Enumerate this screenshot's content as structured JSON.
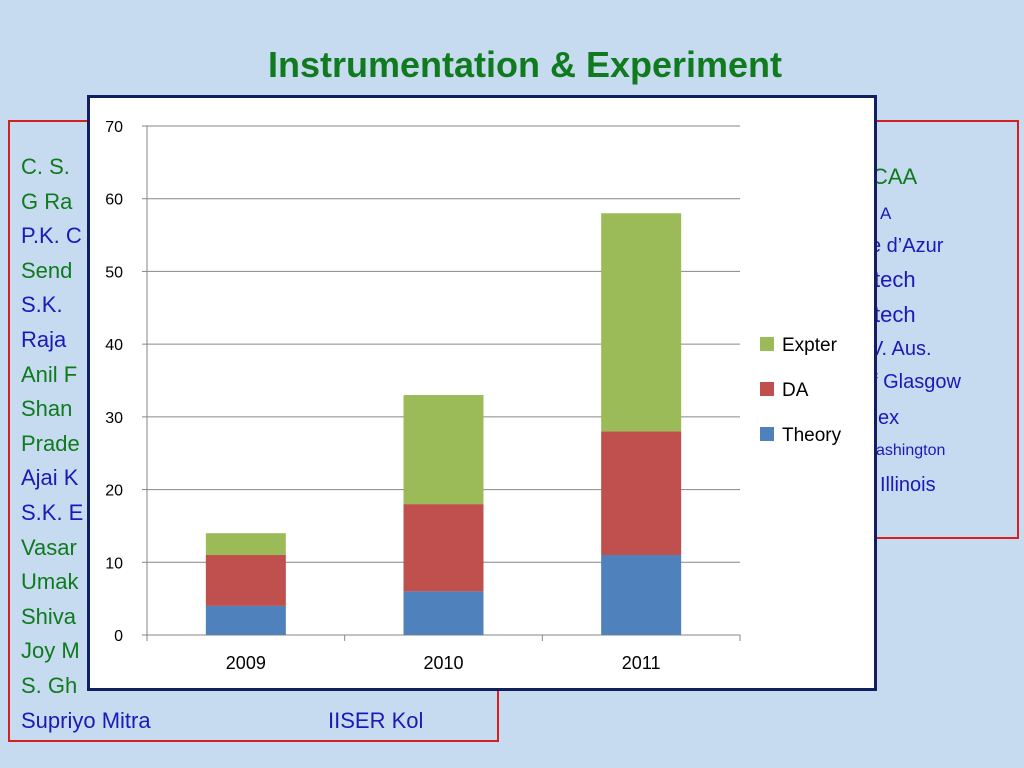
{
  "page": {
    "title": "Instrumentation & Experiment"
  },
  "left_list": [
    {
      "text": "C. S.",
      "color": "#0f7a1e"
    },
    {
      "text": "G Ra",
      "color": "#0f7a1e"
    },
    {
      "text": "P.K. C",
      "color": "#1a1ab8"
    },
    {
      "text": "Send",
      "color": "#0f7a1e"
    },
    {
      "text": "S.K.",
      "color": "#1a1ab8"
    },
    {
      "text": "Raja",
      "color": "#1a1ab8"
    },
    {
      "text": "Anil F",
      "color": "#0f7a1e"
    },
    {
      "text": "Shan",
      "color": "#0f7a1e"
    },
    {
      "text": "Prade",
      "color": "#0f7a1e"
    },
    {
      "text": "Ajai K",
      "color": "#1a1ab8"
    },
    {
      "text": "S.K. E",
      "color": "#1a1ab8"
    },
    {
      "text": "Vasar",
      "color": "#0f7a1e"
    },
    {
      "text": "Umak",
      "color": "#0f7a1e"
    },
    {
      "text": "Shiva",
      "color": "#0f7a1e"
    },
    {
      "text": "Joy M",
      "color": "#0f7a1e"
    },
    {
      "text": "S. Gh",
      "color": "#0f7a1e"
    },
    {
      "text": "Supriyo Mitra",
      "color": "#1a1ab8"
    }
  ],
  "left_affiliation": {
    "text": "IISER Kol",
    "color": "#1a1ab8"
  },
  "right_list": [
    {
      "text": "CAA",
      "color": "#0f7a1e"
    },
    {
      "text": "A",
      "color": "#1a1ab8"
    },
    {
      "text": "e d’Azur",
      "color": "#1a1ab8"
    },
    {
      "text": "tech",
      "color": "#1a1ab8"
    },
    {
      "text": "tech",
      "color": "#1a1ab8"
    },
    {
      "text": "V. Aus.",
      "color": "#1a1ab8"
    },
    {
      "text": "f Glasgow",
      "color": "#1a1ab8"
    },
    {
      "text": "ex",
      "color": "#1a1ab8"
    },
    {
      "text": "ashington",
      "color": "#1a1ab8"
    },
    {
      "text": "Illinois",
      "color": "#1a1ab8"
    }
  ],
  "chart_data": {
    "type": "bar",
    "stacked": true,
    "categories": [
      "2009",
      "2010",
      "2011"
    ],
    "series": [
      {
        "name": "Theory",
        "values": [
          4,
          6,
          11
        ],
        "color": "#4f81bd"
      },
      {
        "name": "DA",
        "values": [
          7,
          12,
          17
        ],
        "color": "#c0504d"
      },
      {
        "name": "Expter",
        "values": [
          3,
          15,
          30
        ],
        "color": "#9bbb59"
      }
    ],
    "ylim": [
      0,
      70
    ],
    "yticks": [
      "0",
      "10",
      "20",
      "30",
      "40",
      "50",
      "60",
      "70"
    ],
    "grid": true,
    "legend": "right",
    "legend_order": [
      "Expter",
      "DA",
      "Theory"
    ]
  }
}
